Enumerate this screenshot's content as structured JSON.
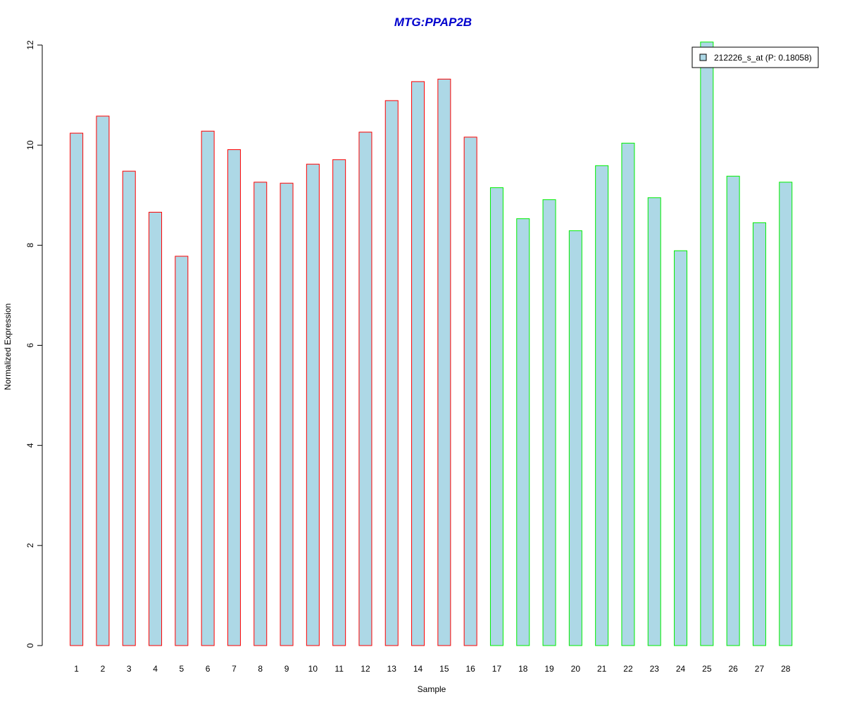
{
  "chart_data": {
    "type": "bar",
    "title": "MTG:PPAP2B",
    "xlabel": "Sample",
    "ylabel": "Normalized Expression",
    "ylim": [
      0,
      12
    ],
    "yticks": [
      0,
      2,
      4,
      6,
      8,
      10,
      12
    ],
    "grid": false,
    "legend_position": "top-right",
    "categories": [
      "1",
      "2",
      "3",
      "4",
      "5",
      "6",
      "7",
      "8",
      "9",
      "10",
      "11",
      "12",
      "13",
      "14",
      "15",
      "16",
      "17",
      "18",
      "19",
      "20",
      "21",
      "22",
      "23",
      "24",
      "25",
      "26",
      "27",
      "28"
    ],
    "series": [
      {
        "name": "212226_s_at (P: 0.18058)",
        "values": [
          10.24,
          10.58,
          9.48,
          8.66,
          7.78,
          10.28,
          9.91,
          9.26,
          9.24,
          9.62,
          9.71,
          10.26,
          10.89,
          11.27,
          11.32,
          10.16,
          9.15,
          8.53,
          8.91,
          8.29,
          9.59,
          10.04,
          8.95,
          7.89,
          12.06,
          9.38,
          8.45,
          9.26
        ],
        "fill_color": "#add8e6",
        "border_colors": [
          "#ff0000",
          "#ff0000",
          "#ff0000",
          "#ff0000",
          "#ff0000",
          "#ff0000",
          "#ff0000",
          "#ff0000",
          "#ff0000",
          "#ff0000",
          "#ff0000",
          "#ff0000",
          "#ff0000",
          "#ff0000",
          "#ff0000",
          "#ff0000",
          "#00ee00",
          "#00ee00",
          "#00ee00",
          "#00ee00",
          "#00ee00",
          "#00ee00",
          "#00ee00",
          "#00ee00",
          "#00ee00",
          "#00ee00",
          "#00ee00",
          "#00ee00"
        ]
      }
    ],
    "colors": {
      "title": "#0000cd",
      "axis": "#000000"
    }
  }
}
